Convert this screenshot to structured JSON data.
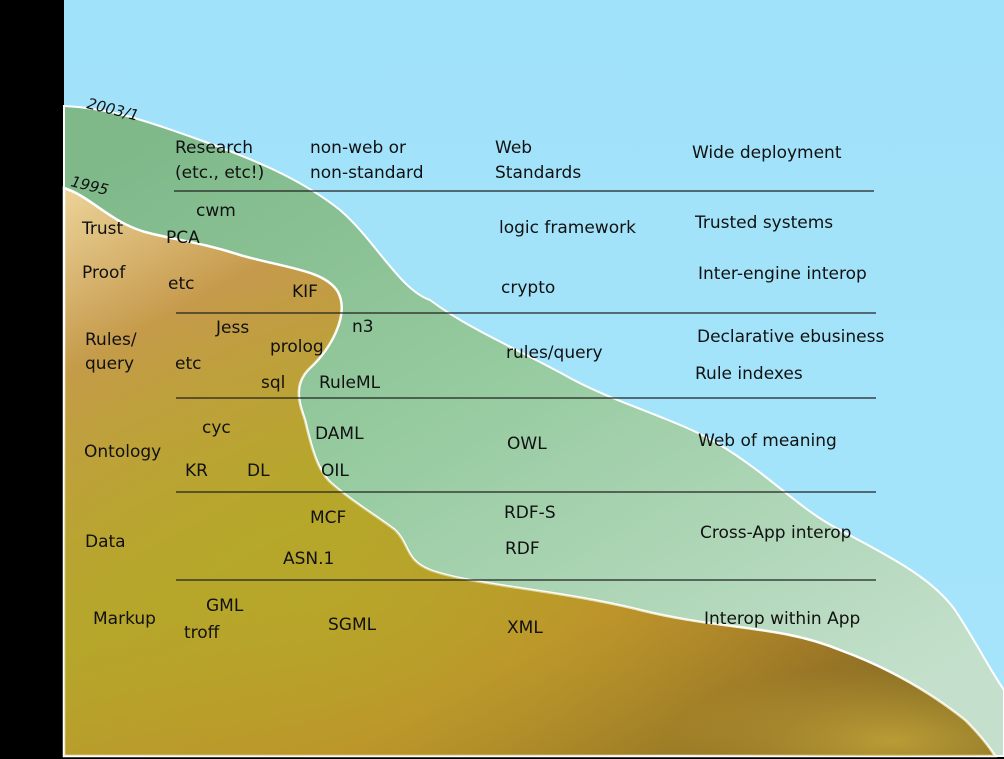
{
  "dates": {
    "outer": "2003/1",
    "inner": "1995"
  },
  "headers": {
    "research": [
      "Research",
      "(etc., etc!)"
    ],
    "nonweb": [
      "non-web or",
      "non-standard"
    ],
    "web": [
      "Web",
      "Standards"
    ],
    "deployment": "Wide deployment"
  },
  "layers": [
    {
      "name": [
        "Trust"
      ],
      "research": [
        "cwm",
        "PCA"
      ],
      "web": [
        "logic framework"
      ],
      "deployment": [
        "Trusted systems"
      ]
    },
    {
      "name": [
        "Proof"
      ],
      "research": [
        "etc",
        "KIF"
      ],
      "web": [
        "crypto"
      ],
      "deployment": [
        "Inter-engine interop"
      ]
    },
    {
      "name": [
        "Rules/",
        "query"
      ],
      "research": [
        "Jess",
        "prolog",
        "etc",
        "sql",
        "n3",
        "RuleML"
      ],
      "web": [
        "rules/query"
      ],
      "deployment": [
        "Declarative ebusiness",
        "Rule indexes"
      ]
    },
    {
      "name": [
        "Ontology"
      ],
      "research": [
        "cyc",
        "DAML",
        "KR",
        "DL",
        "OIL"
      ],
      "web": [
        "OWL"
      ],
      "deployment": [
        "Web of meaning"
      ]
    },
    {
      "name": [
        "Data"
      ],
      "research": [
        "MCF",
        "ASN.1"
      ],
      "web": [
        "RDF-S",
        "RDF"
      ],
      "deployment": [
        "Cross-App interop"
      ]
    },
    {
      "name": [
        "Markup"
      ],
      "research": [
        "GML",
        "troff",
        "SGML"
      ],
      "web": [
        "XML"
      ],
      "deployment": [
        "Interop within App"
      ]
    }
  ],
  "colors": {
    "sky": "#a3e3fa",
    "frame": "#000000",
    "green_front": "#8fc49a",
    "brown_front": "#b7a029",
    "divider": "#222222",
    "text": "#111111"
  }
}
